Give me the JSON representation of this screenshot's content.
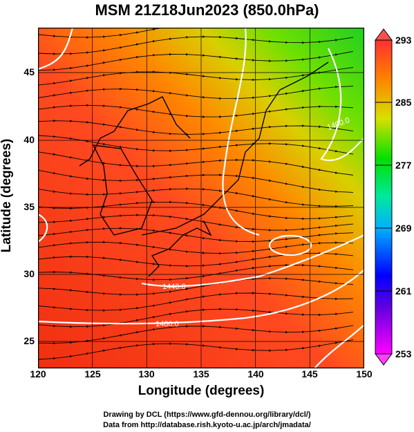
{
  "title": "MSM 21Z18Jun2023 (850.0hPa)",
  "axes": {
    "xlabel": "Longitude (degrees)",
    "ylabel": "Latitude  (degrees)",
    "x_ticks": [
      "120",
      "125",
      "130",
      "135",
      "140",
      "145",
      "150"
    ],
    "y_ticks": [
      "45",
      "40",
      "35",
      "30",
      "25"
    ]
  },
  "colorbar": {
    "ticks": [
      "293",
      "285",
      "277",
      "269",
      "261",
      "253"
    ],
    "colors": [
      "#ff00ff",
      "#0000ff",
      "#00c8ff",
      "#00ff00",
      "#ffff00",
      "#ff8000",
      "#ff3000",
      "#ff4040"
    ]
  },
  "contour_labels": [
    "1400.0",
    "1440.0",
    "1480.0"
  ],
  "credits": {
    "line1": "Drawing by DCL (https://www.gfd-dennou.org/library/dcl/)",
    "line2": "Data from http://database.rish.kyoto-u.ac.jp/arch/jmadata/"
  }
}
